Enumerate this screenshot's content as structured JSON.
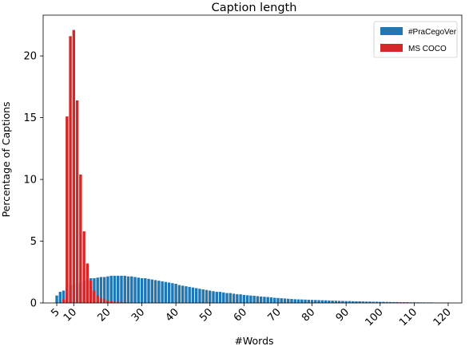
{
  "chart_data": {
    "type": "bar",
    "title": "Caption length",
    "xlabel": "#Words",
    "ylabel": "Percentage of Captions",
    "xlim": [
      1,
      124
    ],
    "ylim": [
      0,
      23.3
    ],
    "x_ticks": [
      5,
      10,
      20,
      30,
      40,
      50,
      60,
      70,
      80,
      90,
      100,
      110,
      120
    ],
    "y_ticks": [
      0,
      5,
      10,
      15,
      20
    ],
    "legend_position": "top-right",
    "grid": false,
    "series": [
      {
        "name": "#PraCegoVer",
        "color": "#1f77b4",
        "x": [
          5,
          6,
          7,
          8,
          9,
          10,
          11,
          12,
          13,
          14,
          15,
          16,
          17,
          18,
          19,
          20,
          21,
          22,
          23,
          24,
          25,
          26,
          27,
          28,
          29,
          30,
          31,
          32,
          33,
          34,
          35,
          36,
          37,
          38,
          39,
          40,
          41,
          42,
          43,
          44,
          45,
          46,
          47,
          48,
          49,
          50,
          51,
          52,
          53,
          54,
          55,
          56,
          57,
          58,
          59,
          60,
          61,
          62,
          63,
          64,
          65,
          66,
          67,
          68,
          69,
          70,
          71,
          72,
          73,
          74,
          75,
          76,
          77,
          78,
          79,
          80,
          81,
          82,
          83,
          84,
          85,
          86,
          87,
          88,
          89,
          90,
          91,
          92,
          93,
          94,
          95,
          96,
          97,
          98,
          99,
          100,
          101,
          102,
          103,
          104,
          105,
          106,
          107,
          108,
          109,
          110,
          111,
          112,
          113,
          114,
          115,
          116,
          117,
          118,
          119,
          120
        ],
        "values": [
          0.6,
          0.9,
          1.0,
          1.2,
          1.4,
          1.5,
          1.6,
          1.7,
          1.8,
          1.9,
          2.0,
          2.0,
          2.05,
          2.1,
          2.1,
          2.15,
          2.2,
          2.2,
          2.2,
          2.2,
          2.2,
          2.15,
          2.15,
          2.1,
          2.05,
          2.0,
          2.0,
          1.95,
          1.9,
          1.85,
          1.8,
          1.75,
          1.7,
          1.65,
          1.6,
          1.55,
          1.45,
          1.4,
          1.35,
          1.3,
          1.25,
          1.2,
          1.15,
          1.1,
          1.05,
          1.0,
          0.95,
          0.9,
          0.9,
          0.85,
          0.8,
          0.8,
          0.75,
          0.7,
          0.7,
          0.65,
          0.62,
          0.6,
          0.58,
          0.55,
          0.52,
          0.5,
          0.48,
          0.45,
          0.42,
          0.4,
          0.38,
          0.36,
          0.34,
          0.32,
          0.3,
          0.29,
          0.28,
          0.27,
          0.26,
          0.25,
          0.24,
          0.23,
          0.22,
          0.21,
          0.2,
          0.19,
          0.18,
          0.17,
          0.16,
          0.15,
          0.15,
          0.14,
          0.13,
          0.13,
          0.12,
          0.11,
          0.11,
          0.1,
          0.1,
          0.09,
          0.09,
          0.08,
          0.08,
          0.07,
          0.07,
          0.06,
          0.06,
          0.06,
          0.05,
          0.05,
          0.05,
          0.04,
          0.04,
          0.04,
          0.04,
          0.03,
          0.03,
          0.03,
          0.03,
          0.03
        ]
      },
      {
        "name": "MS COCO",
        "color": "#d62728",
        "x": [
          7,
          8,
          9,
          10,
          11,
          12,
          13,
          14,
          15,
          16,
          17,
          18,
          19,
          20,
          21,
          22,
          23,
          24,
          25
        ],
        "values": [
          0.3,
          15.1,
          21.6,
          22.1,
          16.4,
          10.4,
          5.8,
          3.2,
          1.8,
          1.0,
          0.6,
          0.4,
          0.3,
          0.2,
          0.15,
          0.1,
          0.1,
          0.05,
          0.05
        ]
      }
    ]
  }
}
